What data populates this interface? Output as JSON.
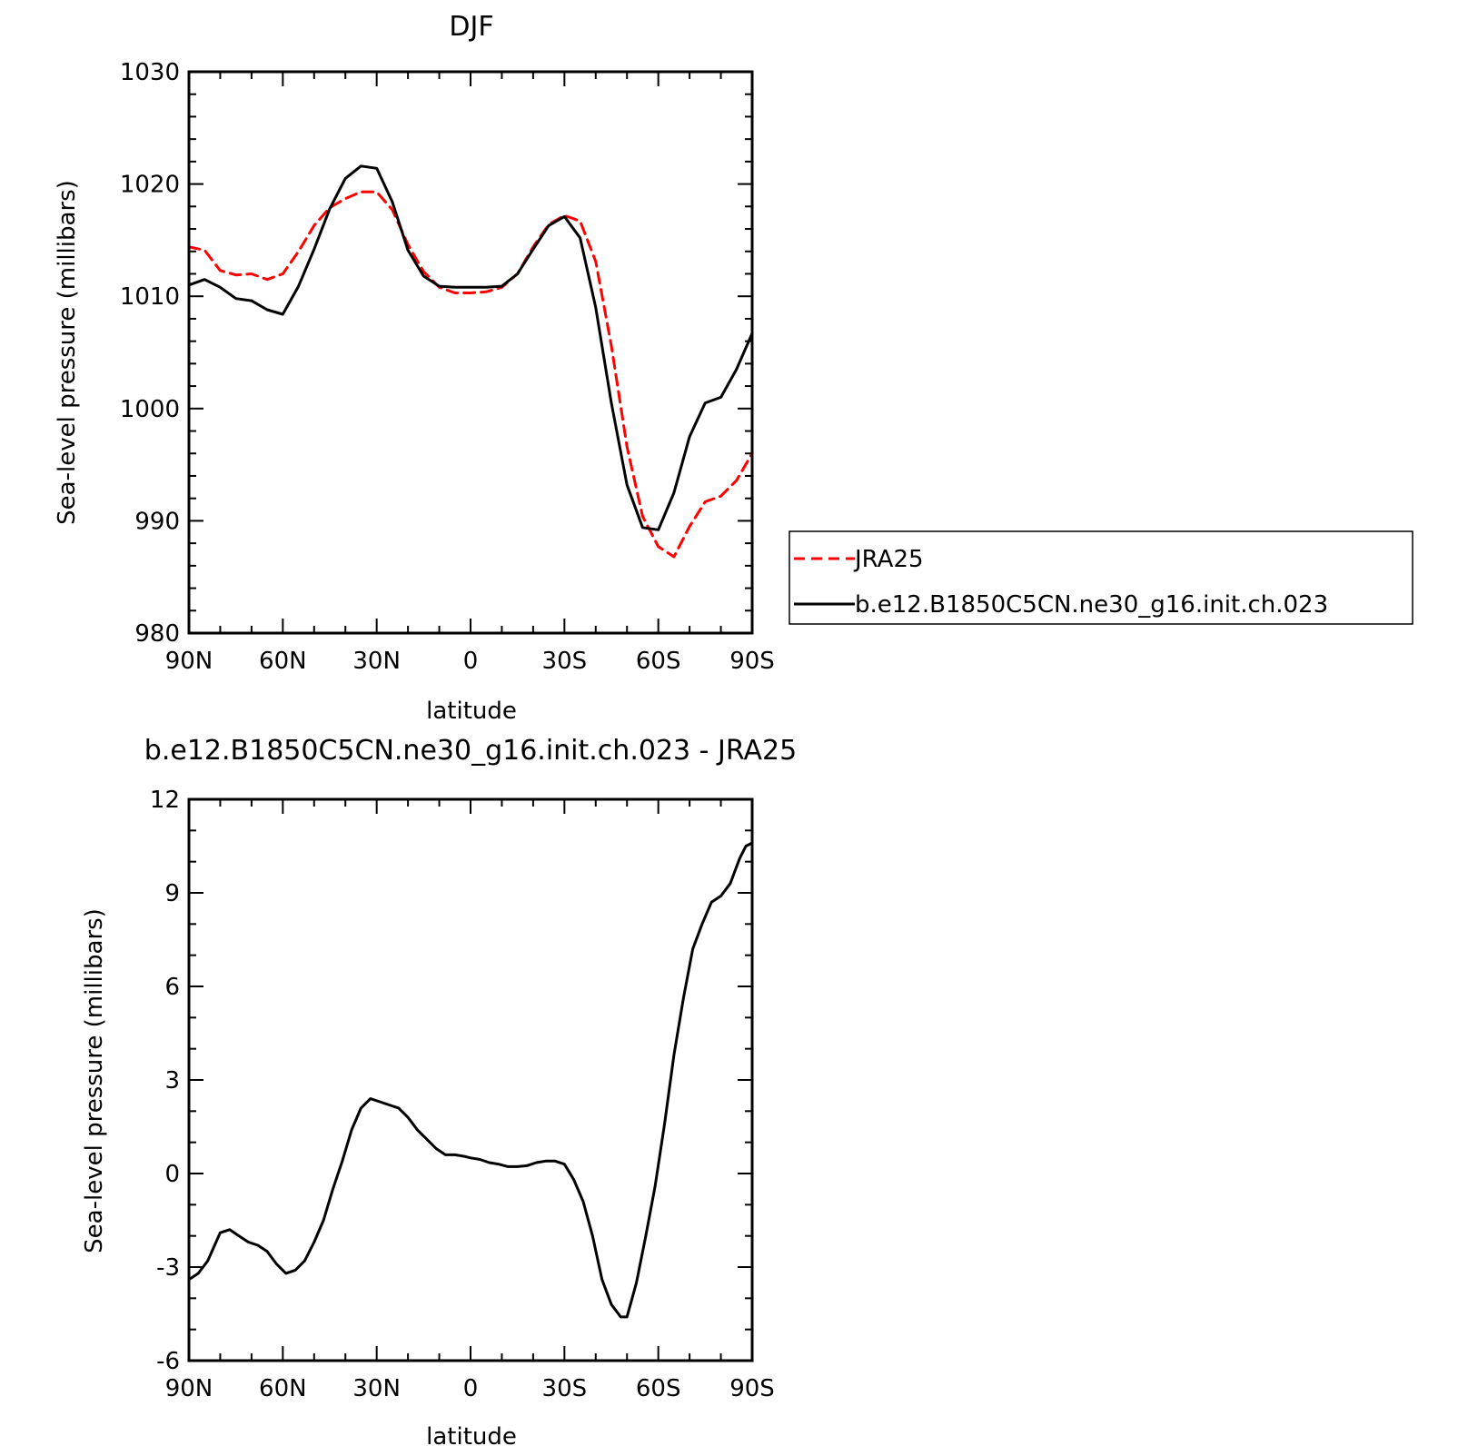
{
  "chart_data": [
    {
      "type": "line",
      "title": "DJF",
      "xlabel": "latitude",
      "ylabel": "Sea-level pressure (millibars)",
      "x_tick_labels": [
        "90N",
        "60N",
        "30N",
        "0",
        "30S",
        "60S",
        "90S"
      ],
      "x_tick_values": [
        90,
        60,
        30,
        0,
        -30,
        -60,
        -90
      ],
      "y_tick_labels": [
        "980",
        "990",
        "1000",
        "1010",
        "1020",
        "1030"
      ],
      "xlim": [
        90,
        -90
      ],
      "ylim": [
        980,
        1030
      ],
      "y_tick_values": [
        980,
        990,
        1000,
        1010,
        1020,
        1030
      ],
      "y_minor_step": 2,
      "x_minor_step": 10,
      "legend": {
        "placement": "right",
        "entries": [
          {
            "name": "JRA25",
            "color": "#ff0000",
            "style": "dashed"
          },
          {
            "name": "b.e12.B1850C5CN.ne30_g16.init.ch.023",
            "color": "#000000",
            "style": "solid"
          }
        ]
      },
      "series": [
        {
          "name": "JRA25",
          "color": "#ff0000",
          "style": "dashed",
          "x": [
            90,
            85,
            80,
            75,
            70,
            65,
            60,
            55,
            50,
            45,
            40,
            35,
            30,
            25,
            20,
            15,
            10,
            5,
            0,
            -5,
            -10,
            -15,
            -20,
            -25,
            -30,
            -35,
            -40,
            -45,
            -50,
            -55,
            -60,
            -65,
            -70,
            -75,
            -80,
            -85,
            -90
          ],
          "y": [
            1014.4,
            1014.1,
            1012.3,
            1011.9,
            1012.0,
            1011.5,
            1012.0,
            1014.0,
            1016.3,
            1017.9,
            1018.7,
            1019.3,
            1019.3,
            1017.7,
            1014.6,
            1012.2,
            1010.8,
            1010.3,
            1010.3,
            1010.4,
            1010.8,
            1012.0,
            1014.4,
            1016.4,
            1017.2,
            1016.7,
            1013.1,
            1005.6,
            996.6,
            990.4,
            987.7,
            986.8,
            989.5,
            991.7,
            992.2,
            993.6,
            996.0
          ]
        },
        {
          "name": "b.e12.B1850C5CN.ne30_g16.init.ch.023",
          "color": "#000000",
          "style": "solid",
          "x": [
            90,
            85,
            80,
            75,
            70,
            65,
            60,
            55,
            50,
            45,
            40,
            35,
            30,
            25,
            20,
            15,
            10,
            5,
            0,
            -5,
            -10,
            -15,
            -20,
            -25,
            -30,
            -35,
            -40,
            -45,
            -50,
            -55,
            -60,
            -65,
            -70,
            -75,
            -80,
            -85,
            -90
          ],
          "y": [
            1011.0,
            1011.5,
            1010.8,
            1009.8,
            1009.6,
            1008.8,
            1008.4,
            1010.9,
            1014.2,
            1017.8,
            1020.5,
            1021.6,
            1021.4,
            1018.4,
            1014.1,
            1011.8,
            1010.9,
            1010.8,
            1010.8,
            1010.8,
            1010.9,
            1012.0,
            1014.2,
            1016.3,
            1017.1,
            1015.2,
            1009.0,
            1000.5,
            993.2,
            989.4,
            989.2,
            992.5,
            997.5,
            1000.5,
            1001.0,
            1003.5,
            1006.7
          ]
        }
      ]
    },
    {
      "type": "line",
      "title": "b.e12.B1850C5CN.ne30_g16.init.ch.023 - JRA25",
      "xlabel": "latitude",
      "ylabel": "Sea-level pressure (millibars)",
      "x_tick_labels": [
        "90N",
        "60N",
        "30N",
        "0",
        "30S",
        "60S",
        "90S"
      ],
      "x_tick_values": [
        90,
        60,
        30,
        0,
        -30,
        -60,
        -90
      ],
      "y_tick_labels": [
        "-6",
        "-3",
        "0",
        "3",
        "6",
        "9",
        "12"
      ],
      "xlim": [
        90,
        -90
      ],
      "ylim": [
        -6,
        12
      ],
      "y_tick_values": [
        -6,
        -3,
        0,
        3,
        6,
        9,
        12
      ],
      "y_minor_step": 1,
      "x_minor_step": 10,
      "series": [
        {
          "color": "#000000",
          "style": "solid",
          "x": [
            90,
            87,
            84,
            80,
            77,
            74,
            71,
            68,
            65,
            62,
            59,
            56,
            53,
            50,
            47,
            44,
            41,
            38,
            35,
            32,
            29,
            26,
            23,
            20,
            17,
            14,
            11,
            8,
            5,
            2,
            0,
            -3,
            -6,
            -9,
            -12,
            -15,
            -18,
            -21,
            -24,
            -27,
            -30,
            -33,
            -36,
            -39,
            -42,
            -45,
            -48,
            -50,
            -53,
            -56,
            -59,
            -62,
            -65,
            -68,
            -71,
            -74,
            -77,
            -80,
            -83,
            -86,
            -88,
            -90
          ],
          "y": [
            -3.4,
            -3.2,
            -2.8,
            -1.9,
            -1.8,
            -2.0,
            -2.2,
            -2.3,
            -2.5,
            -2.9,
            -3.2,
            -3.1,
            -2.8,
            -2.2,
            -1.5,
            -0.5,
            0.4,
            1.4,
            2.1,
            2.4,
            2.3,
            2.2,
            2.1,
            1.8,
            1.4,
            1.1,
            0.8,
            0.6,
            0.6,
            0.55,
            0.5,
            0.45,
            0.35,
            0.3,
            0.22,
            0.22,
            0.25,
            0.35,
            0.4,
            0.4,
            0.3,
            -0.2,
            -0.9,
            -2.0,
            -3.4,
            -4.2,
            -4.6,
            -4.6,
            -3.5,
            -2.0,
            -0.4,
            1.6,
            3.8,
            5.6,
            7.2,
            8.0,
            8.7,
            8.9,
            9.3,
            10.1,
            10.5,
            10.6
          ]
        }
      ]
    }
  ]
}
